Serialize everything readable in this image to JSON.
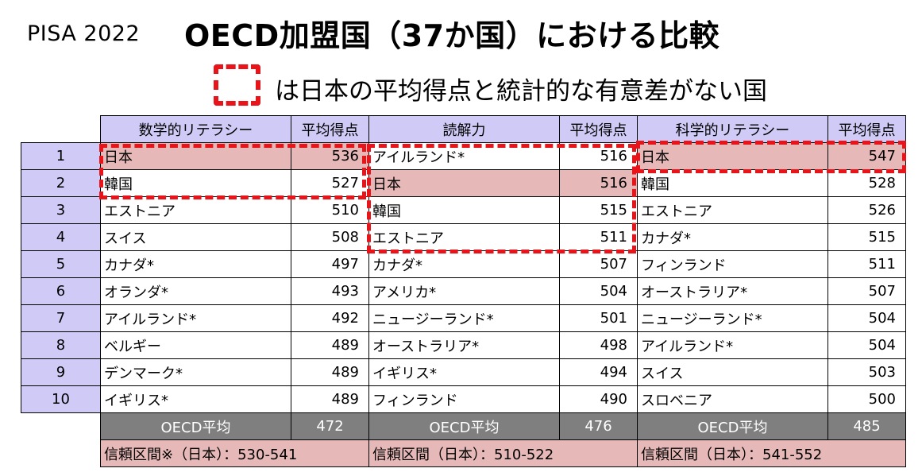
{
  "header": {
    "pisa": "PISA 2022",
    "title": "OECD加盟国（37か国）における比較",
    "legend_text": "は日本の平均得点と統計的な有意差がない国"
  },
  "columns": {
    "math": "数学的リテラシー",
    "reading": "読解力",
    "science": "科学的リテラシー",
    "score": "平均得点"
  },
  "rows": [
    {
      "rank": "1",
      "math": {
        "name": "日本",
        "score": "536"
      },
      "reading": {
        "name": "アイルランド*",
        "score": "516"
      },
      "science": {
        "name": "日本",
        "score": "547"
      }
    },
    {
      "rank": "2",
      "math": {
        "name": "韓国",
        "score": "527"
      },
      "reading": {
        "name": "日本",
        "score": "516"
      },
      "science": {
        "name": "韓国",
        "score": "528"
      }
    },
    {
      "rank": "3",
      "math": {
        "name": "エストニア",
        "score": "510"
      },
      "reading": {
        "name": "韓国",
        "score": "515"
      },
      "science": {
        "name": "エストニア",
        "score": "526"
      }
    },
    {
      "rank": "4",
      "math": {
        "name": "スイス",
        "score": "508"
      },
      "reading": {
        "name": "エストニア",
        "score": "511"
      },
      "science": {
        "name": "カナダ*",
        "score": "515"
      }
    },
    {
      "rank": "5",
      "math": {
        "name": "カナダ*",
        "score": "497"
      },
      "reading": {
        "name": "カナダ*",
        "score": "507"
      },
      "science": {
        "name": "フィンランド",
        "score": "511"
      }
    },
    {
      "rank": "6",
      "math": {
        "name": "オランダ*",
        "score": "493"
      },
      "reading": {
        "name": "アメリカ*",
        "score": "504"
      },
      "science": {
        "name": "オーストラリア*",
        "score": "507"
      }
    },
    {
      "rank": "7",
      "math": {
        "name": "アイルランド*",
        "score": "492"
      },
      "reading": {
        "name": "ニュージーランド*",
        "score": "501"
      },
      "science": {
        "name": "ニュージーランド*",
        "score": "504"
      }
    },
    {
      "rank": "8",
      "math": {
        "name": "ベルギー",
        "score": "489"
      },
      "reading": {
        "name": "オーストラリア*",
        "score": "498"
      },
      "science": {
        "name": "アイルランド*",
        "score": "504"
      }
    },
    {
      "rank": "9",
      "math": {
        "name": "デンマーク*",
        "score": "489"
      },
      "reading": {
        "name": "イギリス*",
        "score": "494"
      },
      "science": {
        "name": "スイス",
        "score": "503"
      }
    },
    {
      "rank": "10",
      "math": {
        "name": "イギリス*",
        "score": "489"
      },
      "reading": {
        "name": "フィンランド",
        "score": "490"
      },
      "science": {
        "name": "スロベニア",
        "score": "500"
      }
    }
  ],
  "oecd_average": {
    "label": "OECD平均",
    "math": "472",
    "reading": "476",
    "science": "485"
  },
  "confidence_interval": {
    "math": "信頼区間※（日本）：530-541",
    "reading": "信頼区間（日本）：510-522",
    "science": "信頼区間（日本）：541-552"
  },
  "colors": {
    "header_bg": "#cfcbf6",
    "japan_highlight": "#e6b8b7",
    "average_bg": "#7f7f7f",
    "dashed_border": "#e8141a"
  }
}
